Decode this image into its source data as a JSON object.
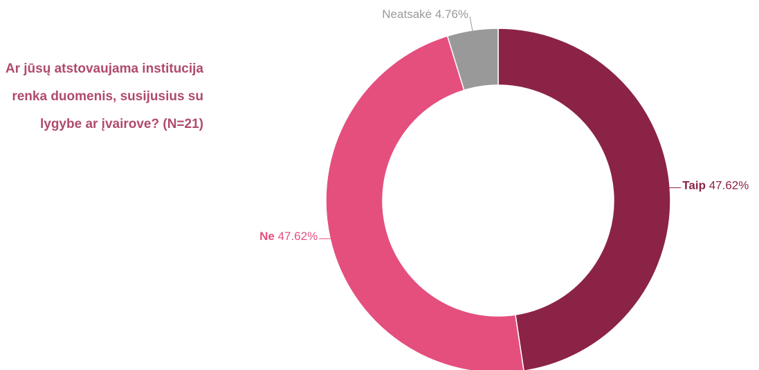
{
  "chart_data": {
    "type": "donut",
    "title": "Ar jūsų atstovaujama institucija renka duomenis, susijusius su lygybe ar įvairove? (N=21)",
    "categories": [
      "Taip",
      "Ne",
      "Neatsakė"
    ],
    "values": [
      47.62,
      47.62,
      4.76
    ],
    "value_labels": [
      "47.62%",
      "47.62%",
      "4.76%"
    ],
    "colors": [
      "#8b2346",
      "#e44f7e",
      "#999999"
    ]
  }
}
